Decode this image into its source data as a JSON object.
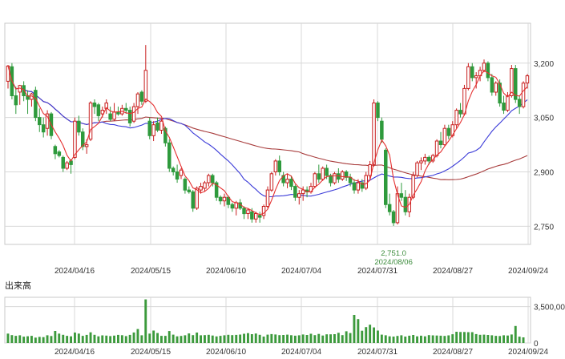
{
  "chart_data": {
    "type": "candlestick",
    "price_axis": {
      "ylim": [
        2700,
        3310
      ],
      "ticks": [
        2750,
        2900,
        3050,
        3200
      ],
      "tick_labels": [
        "2,750",
        "2,900",
        "3,050",
        "3,200"
      ]
    },
    "x_ticks": [
      "2024/04/16",
      "2024/05/15",
      "2024/06/10",
      "2024/07/04",
      "2024/07/31",
      "2024/08/27",
      "2024/09/24"
    ],
    "annotation": {
      "value_label": "2,751.0",
      "date_label": "2024/08/06",
      "value": 2751
    },
    "volume_panel": {
      "label": "出来高",
      "ticks": [
        0,
        3500
      ],
      "tick_labels": [
        "0",
        "3,500,00"
      ],
      "ylim": [
        0,
        4400
      ]
    },
    "colors": {
      "up": "#c81e1e",
      "down": "#2e9a3c",
      "ma_short": "#e53030",
      "ma_medium": "#3b3bd8",
      "ma_long": "#a83c3c",
      "volume": "#3c9a3c",
      "grid": "#d8d8d8"
    },
    "candles": [
      {
        "o": 3150,
        "h": 3195,
        "l": 3130,
        "c": 3192
      },
      {
        "o": 3190,
        "h": 3200,
        "l": 3100,
        "c": 3110
      },
      {
        "o": 3110,
        "h": 3135,
        "l": 3060,
        "c": 3085
      },
      {
        "o": 3120,
        "h": 3140,
        "l": 3085,
        "c": 3138
      },
      {
        "o": 3138,
        "h": 3150,
        "l": 3095,
        "c": 3110
      },
      {
        "o": 3110,
        "h": 3125,
        "l": 3060,
        "c": 3100
      },
      {
        "o": 3100,
        "h": 3118,
        "l": 3080,
        "c": 3115
      },
      {
        "o": 3125,
        "h": 3135,
        "l": 3040,
        "c": 3050
      },
      {
        "o": 3050,
        "h": 3075,
        "l": 3010,
        "c": 3030
      },
      {
        "o": 3030,
        "h": 3050,
        "l": 2995,
        "c": 3010
      },
      {
        "o": 3020,
        "h": 3070,
        "l": 3000,
        "c": 3060
      },
      {
        "o": 3060,
        "h": 3065,
        "l": 2990,
        "c": 3000
      },
      {
        "o": 2970,
        "h": 2975,
        "l": 2935,
        "c": 2950
      },
      {
        "o": 2955,
        "h": 2960,
        "l": 2940,
        "c": 2945
      },
      {
        "o": 2940,
        "h": 2945,
        "l": 2900,
        "c": 2910
      },
      {
        "o": 2910,
        "h": 2930,
        "l": 2905,
        "c": 2925
      },
      {
        "o": 2930,
        "h": 2935,
        "l": 2895,
        "c": 2920
      },
      {
        "o": 2940,
        "h": 3050,
        "l": 2935,
        "c": 3040
      },
      {
        "o": 3040,
        "h": 3055,
        "l": 3000,
        "c": 3010
      },
      {
        "o": 3010,
        "h": 3020,
        "l": 2960,
        "c": 2970
      },
      {
        "o": 2970,
        "h": 2990,
        "l": 2950,
        "c": 2975
      },
      {
        "o": 2990,
        "h": 3095,
        "l": 2985,
        "c": 3090
      },
      {
        "o": 3090,
        "h": 3100,
        "l": 3060,
        "c": 3080
      },
      {
        "o": 3085,
        "h": 3090,
        "l": 3040,
        "c": 3055
      },
      {
        "o": 3060,
        "h": 3080,
        "l": 3050,
        "c": 3070
      },
      {
        "o": 3075,
        "h": 3100,
        "l": 3060,
        "c": 3090
      },
      {
        "o": 3060,
        "h": 3080,
        "l": 3040,
        "c": 3045
      },
      {
        "o": 3045,
        "h": 3090,
        "l": 3040,
        "c": 3065
      },
      {
        "o": 3065,
        "h": 3080,
        "l": 3055,
        "c": 3060
      },
      {
        "o": 3060,
        "h": 3085,
        "l": 3055,
        "c": 3075
      },
      {
        "o": 3075,
        "h": 3090,
        "l": 3060,
        "c": 3070
      },
      {
        "o": 3070,
        "h": 3080,
        "l": 3025,
        "c": 3035
      },
      {
        "o": 3040,
        "h": 3090,
        "l": 3035,
        "c": 3080
      },
      {
        "o": 3080,
        "h": 3120,
        "l": 3060,
        "c": 3115
      },
      {
        "o": 3120,
        "h": 3125,
        "l": 3085,
        "c": 3095
      },
      {
        "o": 3095,
        "h": 3250,
        "l": 3090,
        "c": 3180
      },
      {
        "o": 3040,
        "h": 3050,
        "l": 2990,
        "c": 3000
      },
      {
        "o": 3000,
        "h": 3040,
        "l": 2985,
        "c": 3030
      },
      {
        "o": 3035,
        "h": 3050,
        "l": 3010,
        "c": 3015
      },
      {
        "o": 3015,
        "h": 3045,
        "l": 3005,
        "c": 3040
      },
      {
        "o": 3020,
        "h": 3025,
        "l": 2970,
        "c": 2980
      },
      {
        "o": 2980,
        "h": 2990,
        "l": 2900,
        "c": 2910
      },
      {
        "o": 2910,
        "h": 2915,
        "l": 2890,
        "c": 2900
      },
      {
        "o": 2900,
        "h": 2920,
        "l": 2870,
        "c": 2880
      },
      {
        "o": 2890,
        "h": 2910,
        "l": 2880,
        "c": 2905
      },
      {
        "o": 2880,
        "h": 2885,
        "l": 2840,
        "c": 2850
      },
      {
        "o": 2850,
        "h": 2860,
        "l": 2840,
        "c": 2845
      },
      {
        "o": 2845,
        "h": 2850,
        "l": 2790,
        "c": 2800
      },
      {
        "o": 2800,
        "h": 2860,
        "l": 2795,
        "c": 2855
      },
      {
        "o": 2850,
        "h": 2870,
        "l": 2840,
        "c": 2860
      },
      {
        "o": 2855,
        "h": 2875,
        "l": 2845,
        "c": 2870
      },
      {
        "o": 2870,
        "h": 2895,
        "l": 2860,
        "c": 2890
      },
      {
        "o": 2890,
        "h": 2895,
        "l": 2860,
        "c": 2870
      },
      {
        "o": 2870,
        "h": 2875,
        "l": 2820,
        "c": 2830
      },
      {
        "o": 2830,
        "h": 2835,
        "l": 2810,
        "c": 2820
      },
      {
        "o": 2820,
        "h": 2840,
        "l": 2805,
        "c": 2830
      },
      {
        "o": 2830,
        "h": 2835,
        "l": 2800,
        "c": 2810
      },
      {
        "o": 2810,
        "h": 2815,
        "l": 2790,
        "c": 2800
      },
      {
        "o": 2800,
        "h": 2820,
        "l": 2780,
        "c": 2815
      },
      {
        "o": 2815,
        "h": 2825,
        "l": 2795,
        "c": 2800
      },
      {
        "o": 2800,
        "h": 2805,
        "l": 2770,
        "c": 2785
      },
      {
        "o": 2785,
        "h": 2800,
        "l": 2770,
        "c": 2795
      },
      {
        "o": 2790,
        "h": 2800,
        "l": 2760,
        "c": 2770
      },
      {
        "o": 2770,
        "h": 2790,
        "l": 2760,
        "c": 2785
      },
      {
        "o": 2780,
        "h": 2790,
        "l": 2760,
        "c": 2775
      },
      {
        "o": 2780,
        "h": 2810,
        "l": 2770,
        "c": 2805
      },
      {
        "o": 2805,
        "h": 2860,
        "l": 2800,
        "c": 2850
      },
      {
        "o": 2850,
        "h": 2900,
        "l": 2845,
        "c": 2895
      },
      {
        "o": 2900,
        "h": 2935,
        "l": 2890,
        "c": 2930
      },
      {
        "o": 2930,
        "h": 2945,
        "l": 2890,
        "c": 2900
      },
      {
        "o": 2890,
        "h": 2900,
        "l": 2860,
        "c": 2870
      },
      {
        "o": 2870,
        "h": 2895,
        "l": 2855,
        "c": 2880
      },
      {
        "o": 2880,
        "h": 2890,
        "l": 2850,
        "c": 2860
      },
      {
        "o": 2860,
        "h": 2865,
        "l": 2820,
        "c": 2830
      },
      {
        "o": 2830,
        "h": 2850,
        "l": 2810,
        "c": 2840
      },
      {
        "o": 2840,
        "h": 2860,
        "l": 2820,
        "c": 2850
      },
      {
        "o": 2850,
        "h": 2860,
        "l": 2830,
        "c": 2845
      },
      {
        "o": 2845,
        "h": 2870,
        "l": 2840,
        "c": 2860
      },
      {
        "o": 2860,
        "h": 2900,
        "l": 2855,
        "c": 2895
      },
      {
        "o": 2895,
        "h": 2920,
        "l": 2870,
        "c": 2880
      },
      {
        "o": 2880,
        "h": 2915,
        "l": 2875,
        "c": 2910
      },
      {
        "o": 2910,
        "h": 2920,
        "l": 2880,
        "c": 2890
      },
      {
        "o": 2890,
        "h": 2895,
        "l": 2860,
        "c": 2870
      },
      {
        "o": 2870,
        "h": 2900,
        "l": 2865,
        "c": 2895
      },
      {
        "o": 2895,
        "h": 2910,
        "l": 2870,
        "c": 2880
      },
      {
        "o": 2880,
        "h": 2905,
        "l": 2875,
        "c": 2900
      },
      {
        "o": 2900,
        "h": 2905,
        "l": 2875,
        "c": 2885
      },
      {
        "o": 2885,
        "h": 2895,
        "l": 2860,
        "c": 2870
      },
      {
        "o": 2870,
        "h": 2880,
        "l": 2840,
        "c": 2850
      },
      {
        "o": 2850,
        "h": 2880,
        "l": 2840,
        "c": 2870
      },
      {
        "o": 2870,
        "h": 2880,
        "l": 2845,
        "c": 2855
      },
      {
        "o": 2855,
        "h": 2900,
        "l": 2850,
        "c": 2890
      },
      {
        "o": 2890,
        "h": 2930,
        "l": 2880,
        "c": 2920
      },
      {
        "o": 2920,
        "h": 3100,
        "l": 2915,
        "c": 3090
      },
      {
        "o": 3090,
        "h": 3095,
        "l": 3040,
        "c": 3050
      },
      {
        "o": 3040,
        "h": 3050,
        "l": 2980,
        "c": 2990
      },
      {
        "o": 2960,
        "h": 2965,
        "l": 2800,
        "c": 2810
      },
      {
        "o": 2810,
        "h": 2840,
        "l": 2780,
        "c": 2790
      },
      {
        "o": 2790,
        "h": 2795,
        "l": 2751,
        "c": 2760
      },
      {
        "o": 2760,
        "h": 2860,
        "l": 2755,
        "c": 2840
      },
      {
        "o": 2840,
        "h": 2870,
        "l": 2820,
        "c": 2830
      },
      {
        "o": 2830,
        "h": 2850,
        "l": 2780,
        "c": 2790
      },
      {
        "o": 2790,
        "h": 2840,
        "l": 2775,
        "c": 2830
      },
      {
        "o": 2830,
        "h": 2900,
        "l": 2825,
        "c": 2890
      },
      {
        "o": 2890,
        "h": 2930,
        "l": 2885,
        "c": 2925
      },
      {
        "o": 2925,
        "h": 2940,
        "l": 2905,
        "c": 2930
      },
      {
        "o": 2930,
        "h": 2950,
        "l": 2920,
        "c": 2940
      },
      {
        "o": 2940,
        "h": 2945,
        "l": 2920,
        "c": 2930
      },
      {
        "o": 2930,
        "h": 2950,
        "l": 2925,
        "c": 2945
      },
      {
        "o": 2945,
        "h": 2990,
        "l": 2940,
        "c": 2985
      },
      {
        "o": 2985,
        "h": 3010,
        "l": 2965,
        "c": 2975
      },
      {
        "o": 2975,
        "h": 3030,
        "l": 2970,
        "c": 3020
      },
      {
        "o": 3020,
        "h": 3030,
        "l": 2990,
        "c": 3000
      },
      {
        "o": 3000,
        "h": 3040,
        "l": 2995,
        "c": 3030
      },
      {
        "o": 3030,
        "h": 3075,
        "l": 3020,
        "c": 3070
      },
      {
        "o": 3070,
        "h": 3090,
        "l": 3050,
        "c": 3060
      },
      {
        "o": 3060,
        "h": 3140,
        "l": 3055,
        "c": 3130
      },
      {
        "o": 3130,
        "h": 3200,
        "l": 3125,
        "c": 3190
      },
      {
        "o": 3190,
        "h": 3200,
        "l": 3150,
        "c": 3160
      },
      {
        "o": 3160,
        "h": 3175,
        "l": 3130,
        "c": 3165
      },
      {
        "o": 3165,
        "h": 3190,
        "l": 3150,
        "c": 3180
      },
      {
        "o": 3180,
        "h": 3210,
        "l": 3175,
        "c": 3200
      },
      {
        "o": 3200,
        "h": 3205,
        "l": 3150,
        "c": 3160
      },
      {
        "o": 3160,
        "h": 3170,
        "l": 3110,
        "c": 3120
      },
      {
        "o": 3120,
        "h": 3150,
        "l": 3110,
        "c": 3145
      },
      {
        "o": 3145,
        "h": 3155,
        "l": 3080,
        "c": 3090
      },
      {
        "o": 3090,
        "h": 3110,
        "l": 3060,
        "c": 3070
      },
      {
        "o": 3070,
        "h": 3120,
        "l": 3065,
        "c": 3110
      },
      {
        "o": 3110,
        "h": 3195,
        "l": 3105,
        "c": 3185
      },
      {
        "o": 3185,
        "h": 3195,
        "l": 3090,
        "c": 3100
      },
      {
        "o": 3100,
        "h": 3110,
        "l": 3060,
        "c": 3080
      },
      {
        "o": 3080,
        "h": 3150,
        "l": 3075,
        "c": 3145
      },
      {
        "o": 3145,
        "h": 3170,
        "l": 3130,
        "c": 3165
      }
    ],
    "volume": [
      900,
      760,
      690,
      740,
      610,
      650,
      690,
      520,
      590,
      560,
      740,
      670,
      1160,
      900,
      790,
      690,
      640,
      1000,
      900,
      690,
      780,
      1030,
      790,
      640,
      730,
      710,
      660,
      710,
      780,
      750,
      660,
      780,
      1010,
      1340,
      740,
      4200,
      900,
      1200,
      960,
      690,
      690,
      1150,
      800,
      640,
      680,
      740,
      920,
      760,
      1000,
      740,
      760,
      790,
      720,
      630,
      690,
      740,
      790,
      760,
      780,
      810,
      890,
      950,
      850,
      910,
      790,
      620,
      800,
      860,
      820,
      760,
      770,
      800,
      750,
      700,
      740,
      820,
      770,
      890,
      760,
      870,
      720,
      830,
      830,
      850,
      980,
      760,
      1130,
      960,
      2700,
      2300,
      1180,
      1530,
      1760,
      1500,
      1200,
      800,
      740,
      640,
      620,
      680,
      740,
      620,
      700,
      770,
      640,
      700,
      640,
      760,
      730,
      720,
      700,
      680,
      730,
      840,
      1080,
      1060,
      1060,
      1040,
      1040,
      860,
      790,
      800,
      770,
      740,
      690,
      670,
      740,
      720,
      820,
      1640,
      610,
      540
    ]
  }
}
